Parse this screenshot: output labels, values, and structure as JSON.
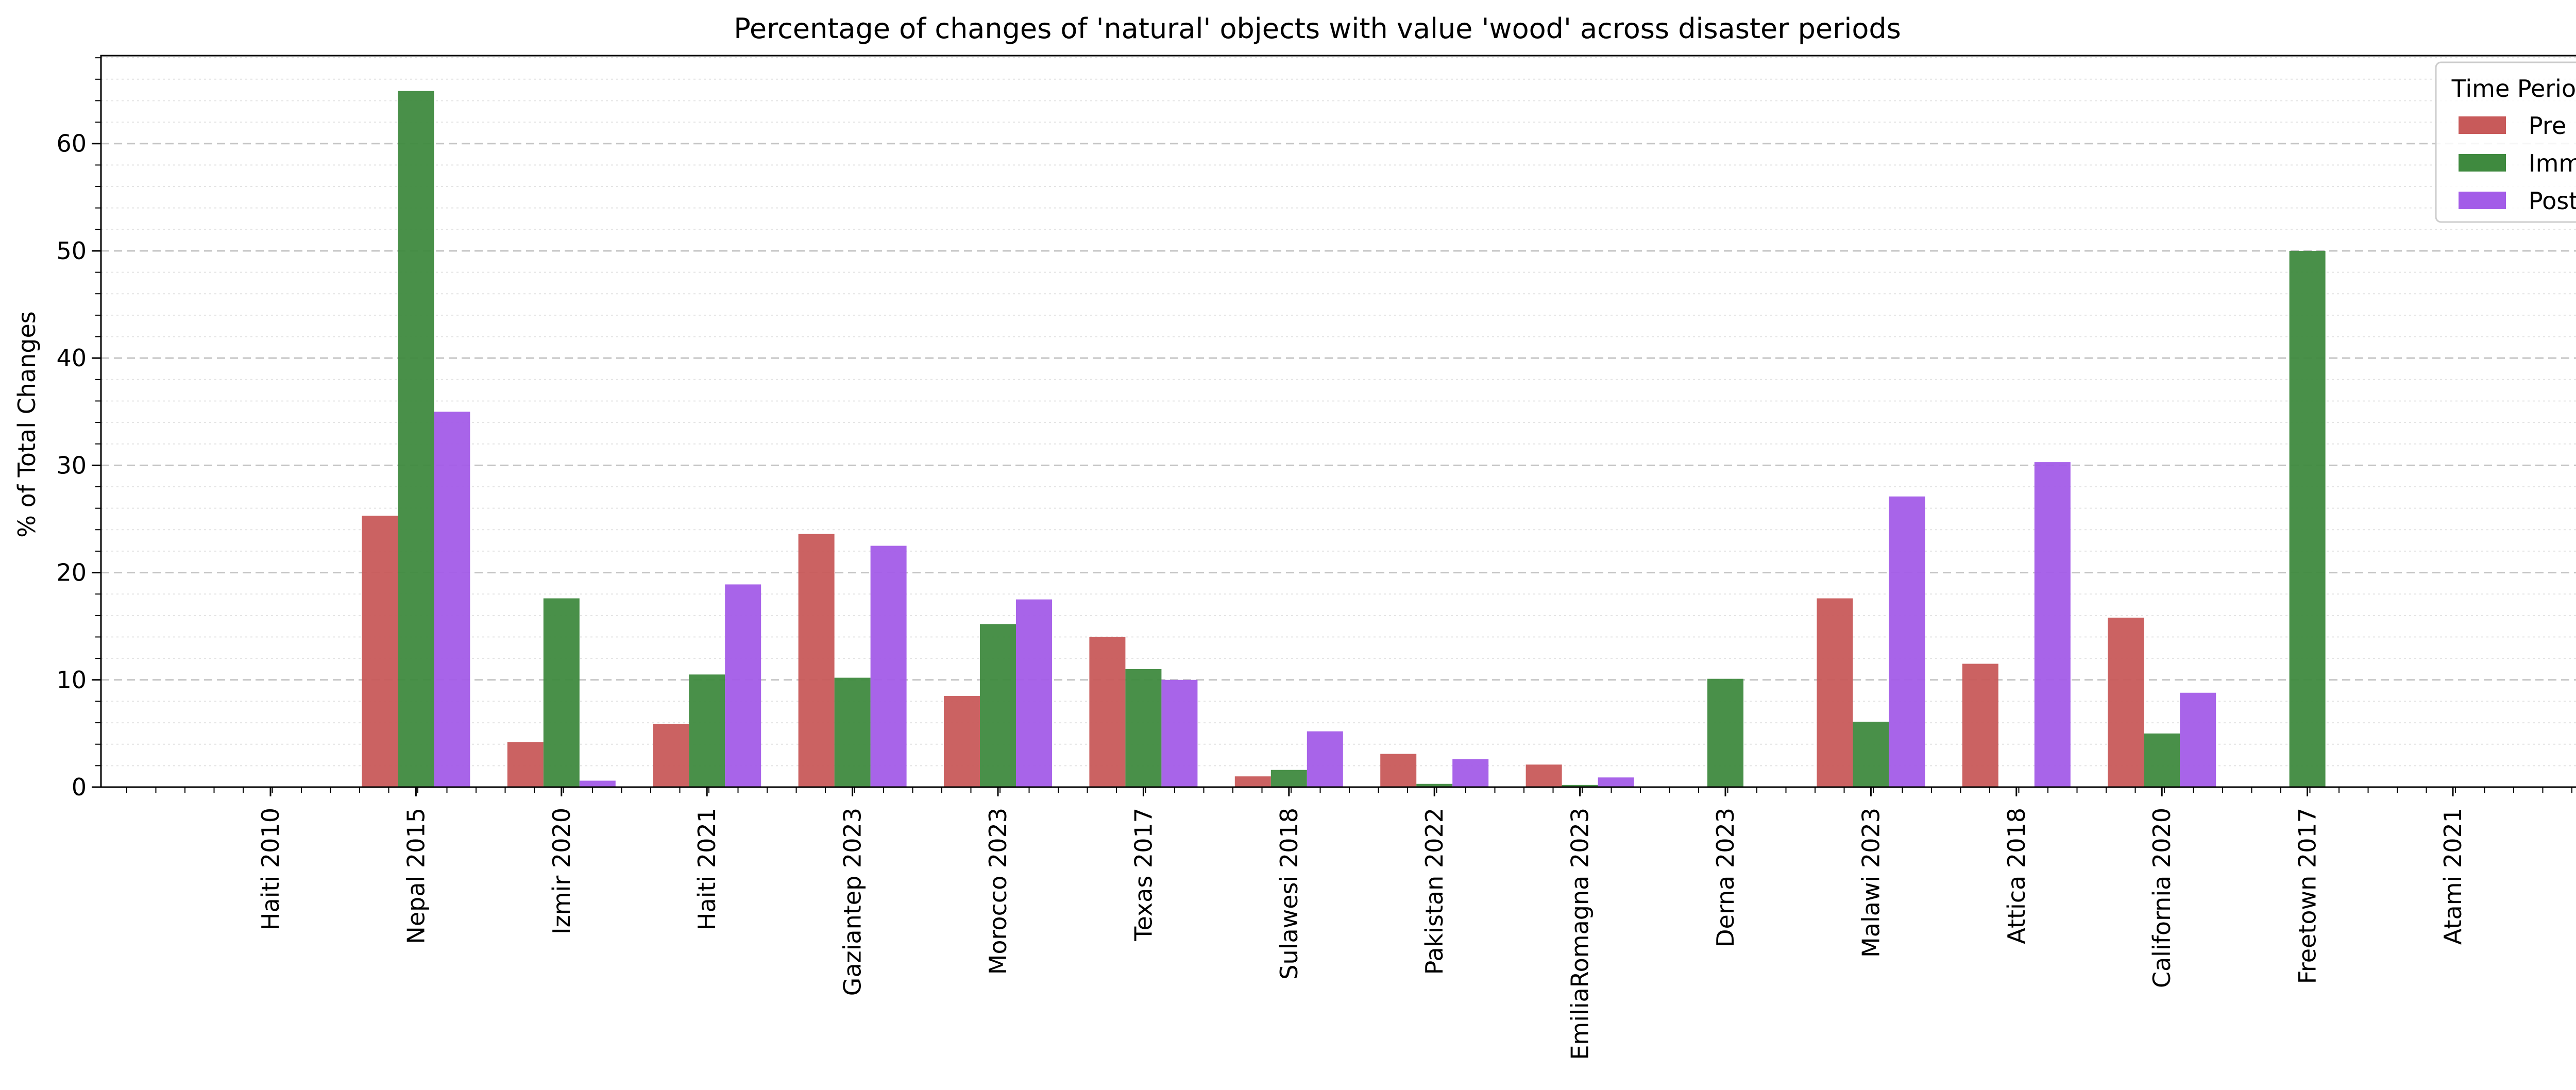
{
  "chart_data": {
    "type": "bar",
    "title": "Percentage of changes of 'natural' objects with value 'wood' across disaster periods",
    "xlabel": "",
    "ylabel": "% of Total Changes",
    "ylim": [
      0,
      68.2
    ],
    "yticks": [
      0,
      10,
      20,
      30,
      40,
      50,
      60
    ],
    "grid": true,
    "legend": {
      "title": "Time Period",
      "placement": "top-right"
    },
    "categories": [
      "Haiti 2010",
      "Nepal 2015",
      "Izmir 2020",
      "Haiti 2021",
      "Gaziantep 2023",
      "Morocco 2023",
      "Texas 2017",
      "Sulawesi 2018",
      "Pakistan 2022",
      "EmiliaRomagna 2023",
      "Derna 2023",
      "Malawi 2023",
      "Attica 2018",
      "California 2020",
      "Freetown 2017",
      "Atami 2021"
    ],
    "series": [
      {
        "name": "Pre",
        "color": "#c85a5a",
        "values": [
          0,
          25.3,
          4.2,
          5.9,
          23.6,
          8.5,
          14.0,
          1.0,
          3.1,
          2.1,
          0,
          17.6,
          11.5,
          15.8,
          0,
          0
        ]
      },
      {
        "name": "Imm",
        "color": "#3f8a3f",
        "values": [
          0,
          64.9,
          17.6,
          10.5,
          10.2,
          15.2,
          11.0,
          1.6,
          0.3,
          0.2,
          10.1,
          6.1,
          0,
          5.0,
          50.0,
          0
        ]
      },
      {
        "name": "Post",
        "color": "#a35ce8",
        "values": [
          0,
          35.0,
          0.6,
          18.9,
          22.5,
          17.5,
          10.0,
          5.2,
          2.6,
          0.9,
          0,
          27.1,
          30.3,
          8.8,
          0,
          0
        ]
      }
    ]
  }
}
